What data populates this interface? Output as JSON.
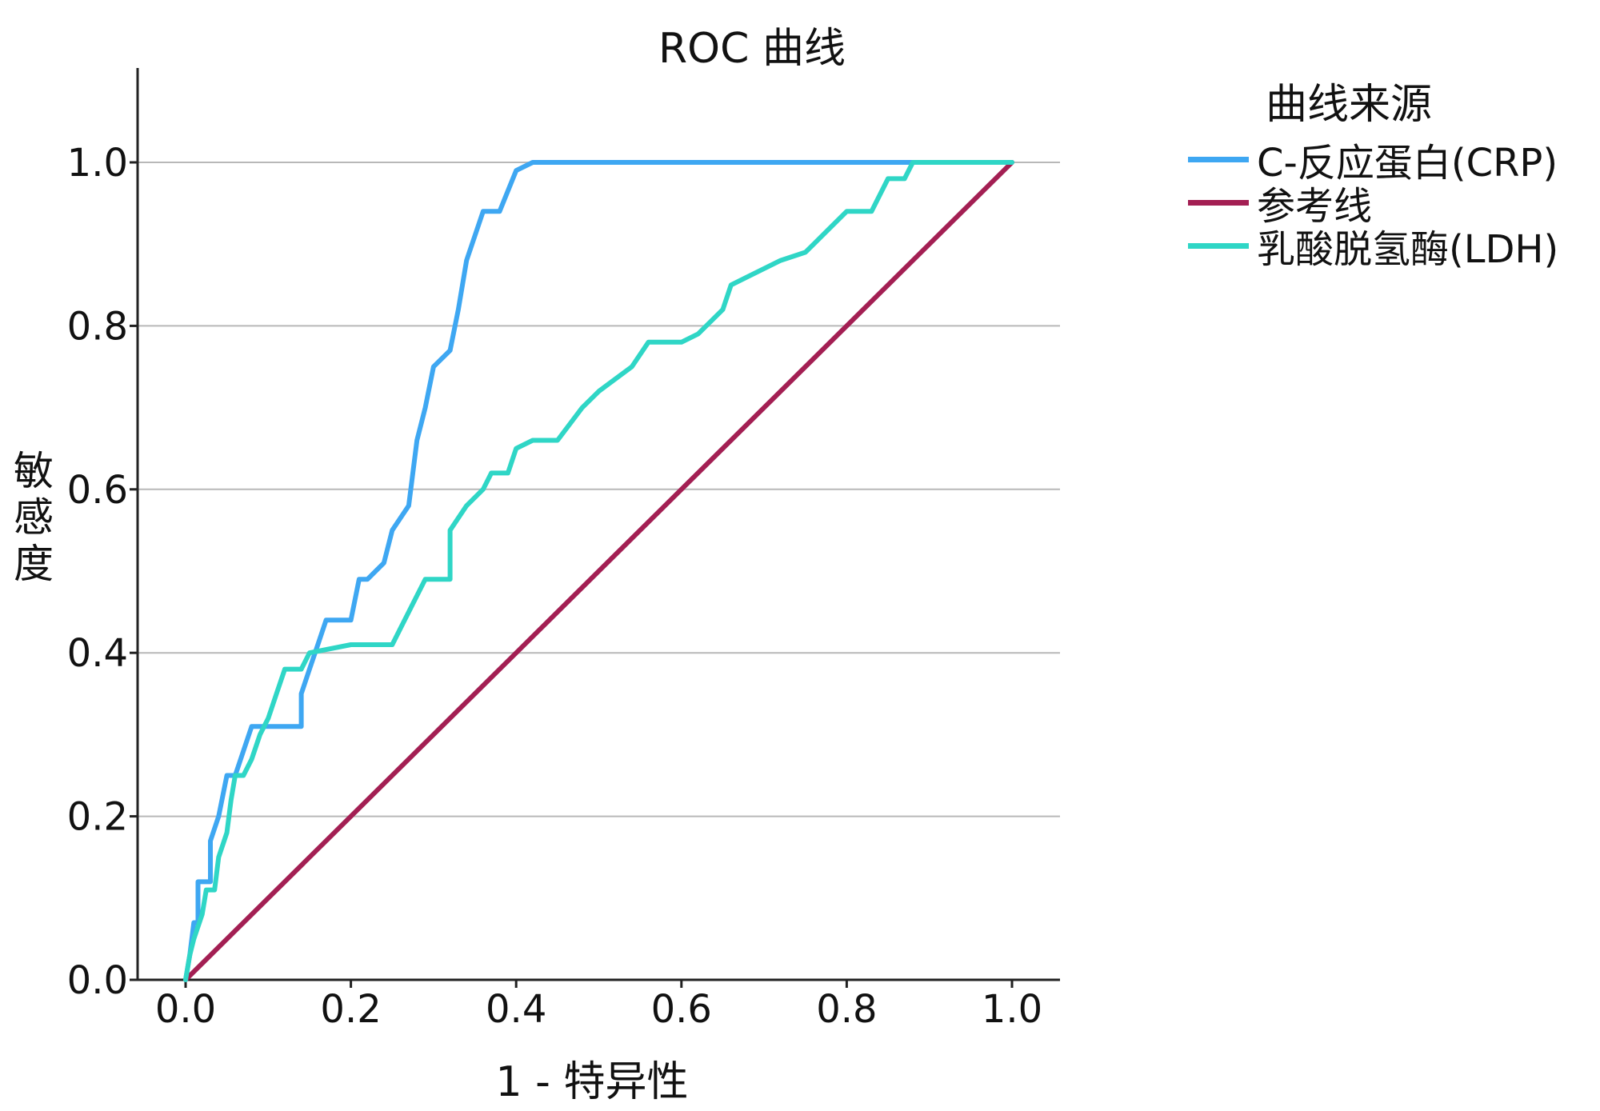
{
  "chart_data": {
    "type": "line",
    "title": "ROC 曲线",
    "xlabel": "1 - 特异性",
    "ylabel": "敏感度",
    "xlim": [
      0.0,
      1.0
    ],
    "ylim": [
      0.0,
      1.0
    ],
    "x_ticks": [
      "0.0",
      "0.2",
      "0.4",
      "0.6",
      "0.8",
      "1.0"
    ],
    "y_ticks": [
      "0.0",
      "0.2",
      "0.4",
      "0.6",
      "0.8",
      "1.0"
    ],
    "grid": "horizontal",
    "legend_title": "曲线来源",
    "legend_position": "right",
    "series": [
      {
        "name": "C-反应蛋白(CRP)",
        "color": "#3ea7f2",
        "points": [
          [
            0.0,
            0.0
          ],
          [
            0.005,
            0.03
          ],
          [
            0.01,
            0.07
          ],
          [
            0.015,
            0.07
          ],
          [
            0.015,
            0.12
          ],
          [
            0.03,
            0.12
          ],
          [
            0.03,
            0.17
          ],
          [
            0.04,
            0.2
          ],
          [
            0.05,
            0.25
          ],
          [
            0.06,
            0.25
          ],
          [
            0.07,
            0.28
          ],
          [
            0.08,
            0.31
          ],
          [
            0.1,
            0.31
          ],
          [
            0.14,
            0.31
          ],
          [
            0.14,
            0.35
          ],
          [
            0.15,
            0.38
          ],
          [
            0.16,
            0.41
          ],
          [
            0.17,
            0.44
          ],
          [
            0.2,
            0.44
          ],
          [
            0.21,
            0.49
          ],
          [
            0.22,
            0.49
          ],
          [
            0.24,
            0.51
          ],
          [
            0.25,
            0.55
          ],
          [
            0.27,
            0.58
          ],
          [
            0.28,
            0.66
          ],
          [
            0.29,
            0.7
          ],
          [
            0.3,
            0.75
          ],
          [
            0.32,
            0.77
          ],
          [
            0.33,
            0.82
          ],
          [
            0.34,
            0.88
          ],
          [
            0.36,
            0.94
          ],
          [
            0.38,
            0.94
          ],
          [
            0.4,
            0.99
          ],
          [
            0.42,
            1.0
          ],
          [
            1.0,
            1.0
          ]
        ]
      },
      {
        "name": "参考线",
        "color": "#a31f53",
        "points": [
          [
            0.0,
            0.0
          ],
          [
            1.0,
            1.0
          ]
        ]
      },
      {
        "name": "乳酸脱氢酶(LDH)",
        "color": "#2fd6c6",
        "points": [
          [
            0.0,
            0.0
          ],
          [
            0.005,
            0.03
          ],
          [
            0.01,
            0.05
          ],
          [
            0.02,
            0.08
          ],
          [
            0.025,
            0.11
          ],
          [
            0.035,
            0.11
          ],
          [
            0.04,
            0.15
          ],
          [
            0.05,
            0.18
          ],
          [
            0.055,
            0.22
          ],
          [
            0.06,
            0.25
          ],
          [
            0.07,
            0.25
          ],
          [
            0.08,
            0.27
          ],
          [
            0.09,
            0.3
          ],
          [
            0.1,
            0.32
          ],
          [
            0.11,
            0.35
          ],
          [
            0.12,
            0.38
          ],
          [
            0.14,
            0.38
          ],
          [
            0.15,
            0.4
          ],
          [
            0.2,
            0.41
          ],
          [
            0.25,
            0.41
          ],
          [
            0.26,
            0.43
          ],
          [
            0.28,
            0.47
          ],
          [
            0.29,
            0.49
          ],
          [
            0.32,
            0.49
          ],
          [
            0.32,
            0.55
          ],
          [
            0.34,
            0.58
          ],
          [
            0.36,
            0.6
          ],
          [
            0.37,
            0.62
          ],
          [
            0.39,
            0.62
          ],
          [
            0.4,
            0.65
          ],
          [
            0.42,
            0.66
          ],
          [
            0.45,
            0.66
          ],
          [
            0.48,
            0.7
          ],
          [
            0.5,
            0.72
          ],
          [
            0.54,
            0.75
          ],
          [
            0.56,
            0.78
          ],
          [
            0.6,
            0.78
          ],
          [
            0.62,
            0.79
          ],
          [
            0.65,
            0.82
          ],
          [
            0.66,
            0.85
          ],
          [
            0.68,
            0.86
          ],
          [
            0.72,
            0.88
          ],
          [
            0.75,
            0.89
          ],
          [
            0.78,
            0.92
          ],
          [
            0.8,
            0.94
          ],
          [
            0.83,
            0.94
          ],
          [
            0.85,
            0.98
          ],
          [
            0.87,
            0.98
          ],
          [
            0.88,
            1.0
          ],
          [
            1.0,
            1.0
          ]
        ]
      }
    ]
  }
}
